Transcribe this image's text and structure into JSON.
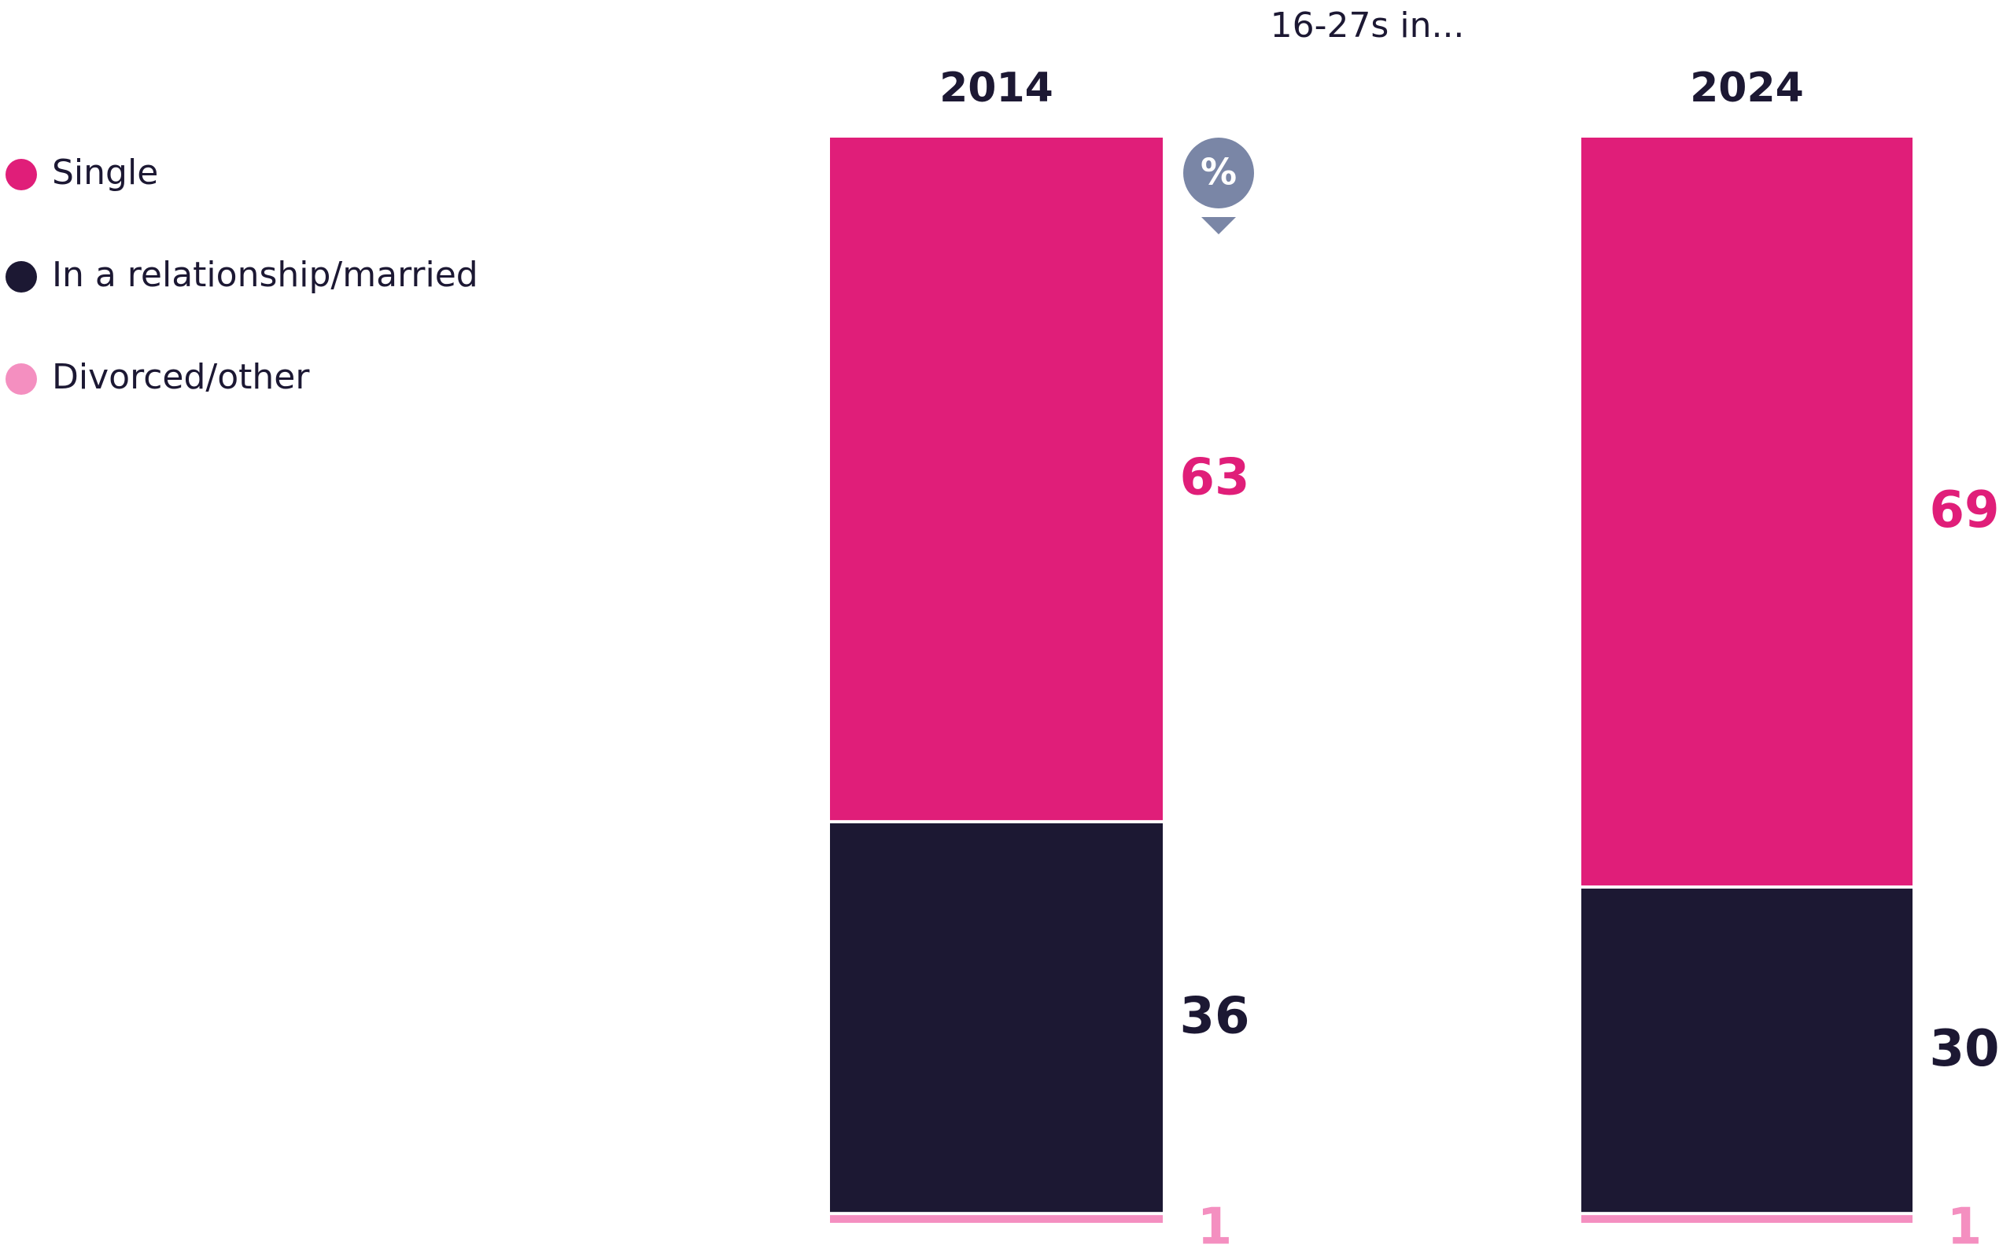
{
  "chart_data": {
    "type": "stacked_bar",
    "subtitle": "16-27s in...",
    "unit": "%",
    "categories": [
      "2014",
      "2024"
    ],
    "series": [
      {
        "name": "Single",
        "color": "#e01e79",
        "values": [
          63,
          69
        ]
      },
      {
        "name": "In a relationship/married",
        "color": "#1c1833",
        "values": [
          36,
          30
        ]
      },
      {
        "name": "Divorced/other",
        "color": "#f48fc0",
        "values": [
          1,
          1
        ]
      }
    ]
  }
}
